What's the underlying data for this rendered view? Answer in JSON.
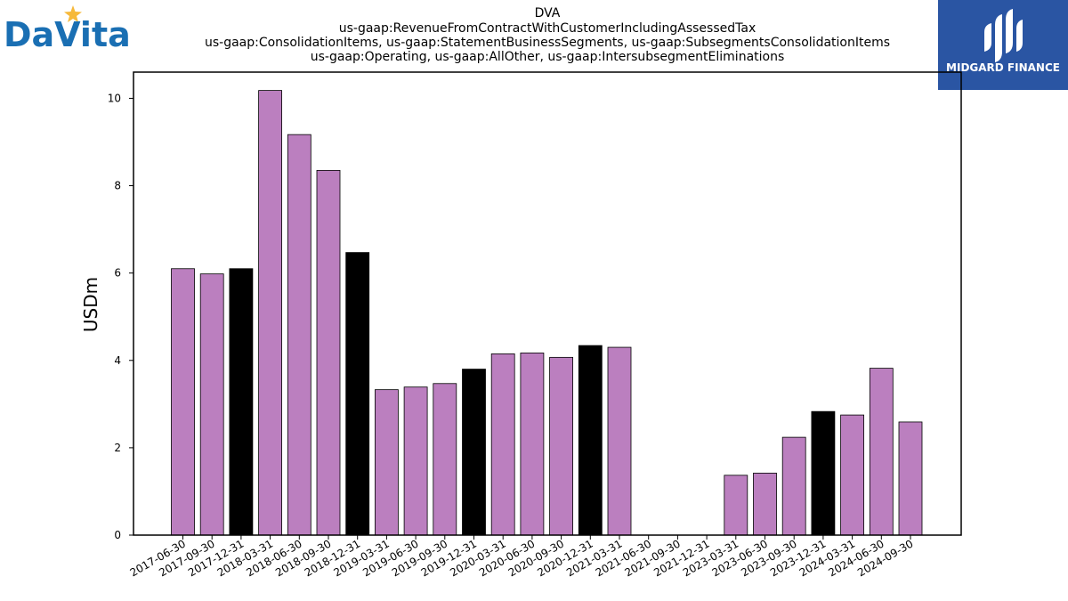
{
  "company_logo": {
    "text": "DaVita",
    "star_color": "#f6b93b",
    "text_color": "#1a6fb3"
  },
  "brand_logo": {
    "text": "MIDGARD FINANCE",
    "bg_color": "#2a55a3"
  },
  "chart_data": {
    "type": "bar",
    "title_lines": [
      "DVA",
      "us-gaap:RevenueFromContractWithCustomerIncludingAssessedTax",
      "us-gaap:ConsolidationItems, us-gaap:StatementBusinessSegments, us-gaap:SubsegmentsConsolidationItems",
      "us-gaap:Operating, us-gaap:AllOther, us-gaap:IntersubsegmentEliminations"
    ],
    "ylabel": "USDm",
    "ylim": [
      0,
      10.6
    ],
    "yticks": [
      0,
      2,
      4,
      6,
      8,
      10
    ],
    "colors": {
      "regular": "#bb7fbf",
      "year_end": "#000000"
    },
    "categories": [
      "2017-06-30",
      "2017-09-30",
      "2017-12-31",
      "2018-03-31",
      "2018-06-30",
      "2018-09-30",
      "2018-12-31",
      "2019-03-31",
      "2019-06-30",
      "2019-09-30",
      "2019-12-31",
      "2020-03-31",
      "2020-06-30",
      "2020-09-30",
      "2020-12-31",
      "2021-03-31",
      "2021-06-30",
      "2021-09-30",
      "2021-12-31",
      "2023-03-31",
      "2023-06-30",
      "2023-09-30",
      "2023-12-31",
      "2024-03-31",
      "2024-06-30",
      "2024-09-30"
    ],
    "values": [
      6.1,
      5.98,
      6.1,
      10.18,
      9.17,
      8.35,
      6.47,
      3.33,
      3.39,
      3.47,
      3.8,
      4.15,
      4.17,
      4.07,
      4.34,
      4.3,
      null,
      null,
      null,
      1.37,
      1.42,
      2.24,
      2.83,
      2.75,
      3.82,
      2.59
    ],
    "year_end": [
      false,
      false,
      true,
      false,
      false,
      false,
      true,
      false,
      false,
      false,
      true,
      false,
      false,
      false,
      true,
      false,
      false,
      false,
      false,
      false,
      false,
      false,
      true,
      false,
      false,
      false
    ]
  }
}
